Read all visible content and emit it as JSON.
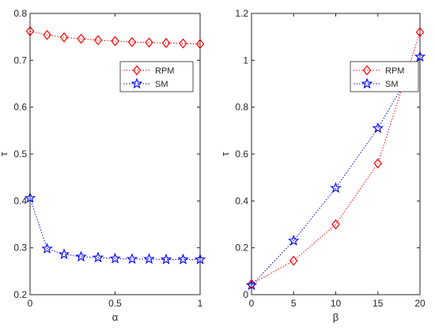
{
  "chart_data": [
    {
      "type": "line",
      "xlabel": "α",
      "ylabel": "τ",
      "xlim": [
        0,
        1
      ],
      "ylim": [
        0.2,
        0.8
      ],
      "xticks": [
        0,
        0.5,
        1
      ],
      "xtick_labels": [
        "0",
        "0.5",
        "1"
      ],
      "yticks": [
        0.2,
        0.3,
        0.4,
        0.5,
        0.6,
        0.7,
        0.8
      ],
      "ytick_labels": [
        "0.2",
        "0.3",
        "0.4",
        "0.5",
        "0.6",
        "0.7",
        "0.8"
      ],
      "legend_position": "upper-right",
      "grid": false,
      "series": [
        {
          "name": "RPM",
          "color": "#ff0000",
          "marker": "diamond",
          "line_style": "dotted",
          "x": [
            0,
            0.1,
            0.2,
            0.3,
            0.4,
            0.5,
            0.6,
            0.7,
            0.8,
            0.9,
            1.0
          ],
          "y": [
            0.762,
            0.754,
            0.749,
            0.746,
            0.743,
            0.741,
            0.739,
            0.738,
            0.737,
            0.736,
            0.735
          ]
        },
        {
          "name": "SM",
          "color": "#0000ff",
          "marker": "pentagram",
          "line_style": "dotted",
          "x": [
            0,
            0.1,
            0.2,
            0.3,
            0.4,
            0.5,
            0.6,
            0.7,
            0.8,
            0.9,
            1.0
          ],
          "y": [
            0.406,
            0.298,
            0.286,
            0.281,
            0.279,
            0.277,
            0.276,
            0.276,
            0.275,
            0.275,
            0.275
          ]
        }
      ]
    },
    {
      "type": "line",
      "xlabel": "β",
      "ylabel": "τ",
      "xlim": [
        0,
        20
      ],
      "ylim": [
        0,
        1.2
      ],
      "xticks": [
        0,
        5,
        10,
        15,
        20
      ],
      "xtick_labels": [
        "0",
        "5",
        "10",
        "15",
        "20"
      ],
      "yticks": [
        0,
        0.2,
        0.4,
        0.6,
        0.8,
        1.0,
        1.2
      ],
      "ytick_labels": [
        "0",
        "0.2",
        "0.4",
        "0.6",
        "0.8",
        "1",
        "1.2"
      ],
      "legend_position": "upper-right",
      "grid": false,
      "series": [
        {
          "name": "RPM",
          "color": "#ff0000",
          "marker": "diamond",
          "line_style": "dotted",
          "x": [
            0,
            5,
            10,
            15,
            20
          ],
          "y": [
            0.045,
            0.145,
            0.3,
            0.56,
            1.12
          ]
        },
        {
          "name": "SM",
          "color": "#0000ff",
          "marker": "pentagram",
          "line_style": "dotted",
          "x": [
            0,
            5,
            10,
            15,
            20
          ],
          "y": [
            0.04,
            0.23,
            0.455,
            0.71,
            1.015
          ]
        }
      ]
    }
  ]
}
